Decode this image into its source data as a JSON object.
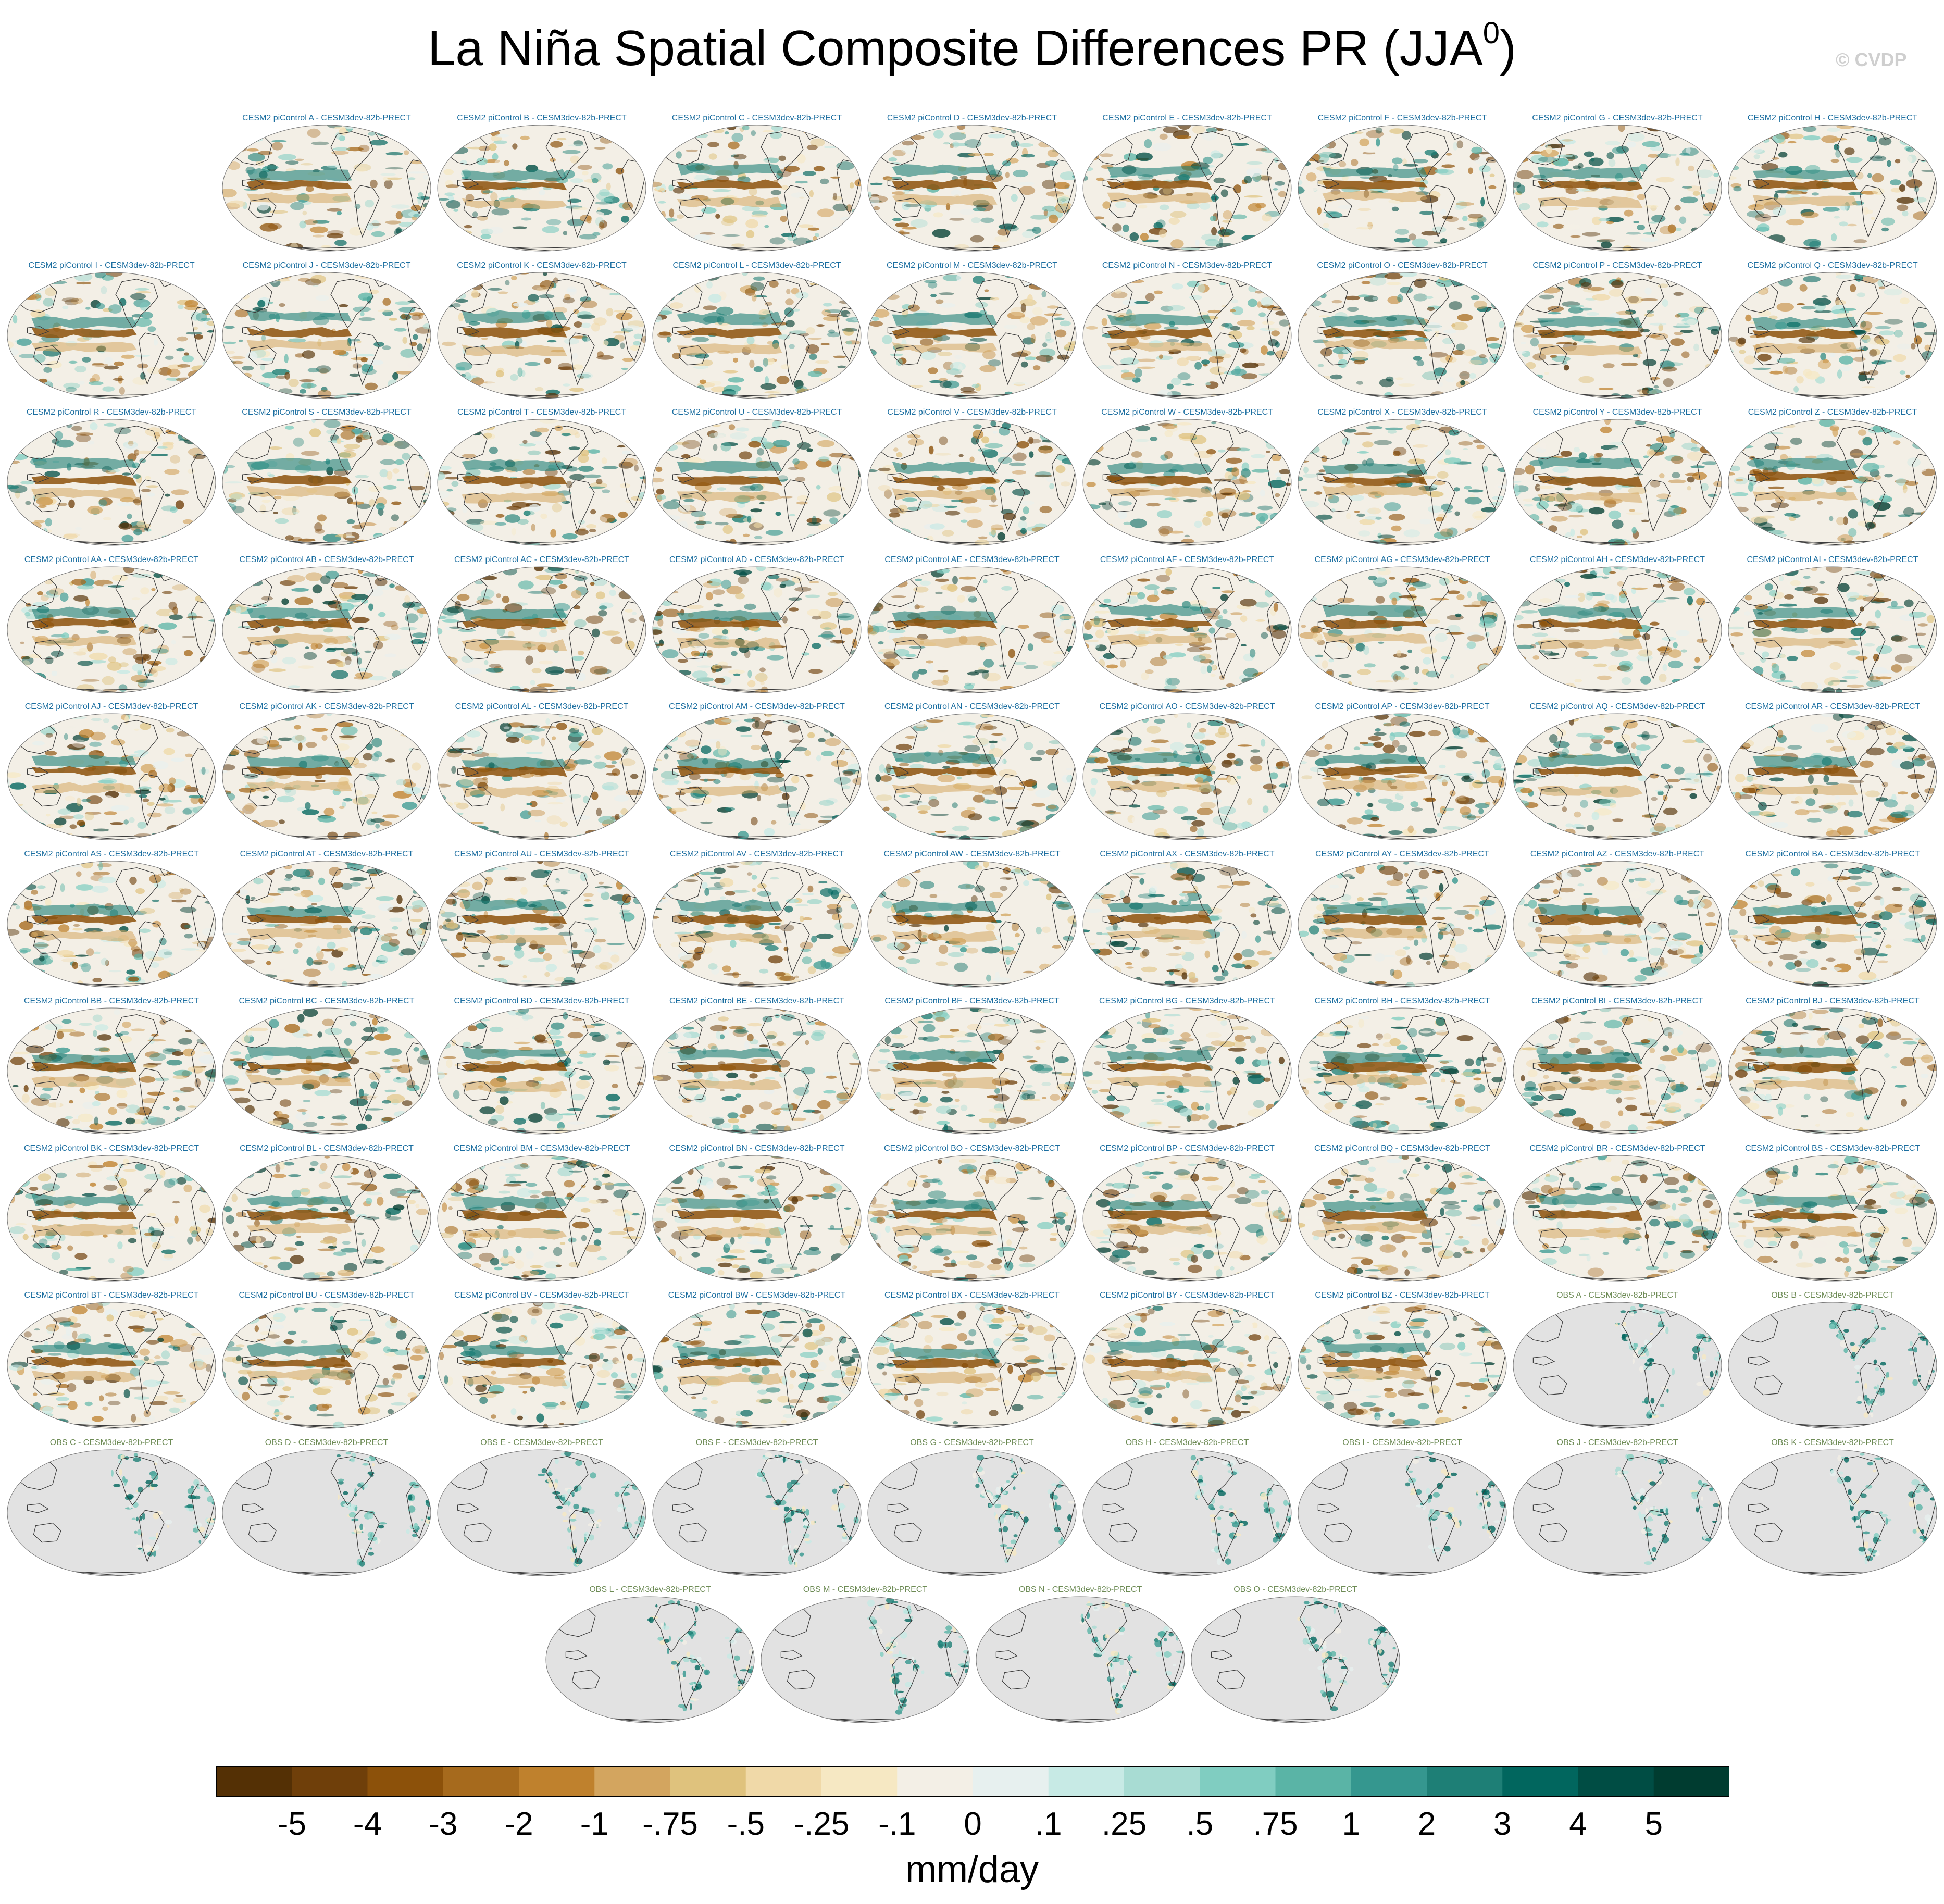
{
  "figure": {
    "title_main": "La Niña Spatial Composite Differences PR (JJA",
    "title_sup": "0",
    "title_close": ")",
    "copyright": "© CVDP",
    "units": "mm/day"
  },
  "panels": [
    {
      "title": "CESM2 piControl A - CESM3dev-82b-PRECT",
      "kind": "model"
    },
    {
      "title": "CESM2 piControl B - CESM3dev-82b-PRECT",
      "kind": "model"
    },
    {
      "title": "CESM2 piControl C - CESM3dev-82b-PRECT",
      "kind": "model"
    },
    {
      "title": "CESM2 piControl D - CESM3dev-82b-PRECT",
      "kind": "model"
    },
    {
      "title": "CESM2 piControl E - CESM3dev-82b-PRECT",
      "kind": "model"
    },
    {
      "title": "CESM2 piControl F - CESM3dev-82b-PRECT",
      "kind": "model"
    },
    {
      "title": "CESM2 piControl G - CESM3dev-82b-PRECT",
      "kind": "model"
    },
    {
      "title": "CESM2 piControl H - CESM3dev-82b-PRECT",
      "kind": "model"
    },
    {
      "title": "CESM2 piControl I - CESM3dev-82b-PRECT",
      "kind": "model"
    },
    {
      "title": "CESM2 piControl J - CESM3dev-82b-PRECT",
      "kind": "model"
    },
    {
      "title": "CESM2 piControl K - CESM3dev-82b-PRECT",
      "kind": "model"
    },
    {
      "title": "CESM2 piControl L - CESM3dev-82b-PRECT",
      "kind": "model"
    },
    {
      "title": "CESM2 piControl M - CESM3dev-82b-PRECT",
      "kind": "model"
    },
    {
      "title": "CESM2 piControl N - CESM3dev-82b-PRECT",
      "kind": "model"
    },
    {
      "title": "CESM2 piControl O - CESM3dev-82b-PRECT",
      "kind": "model"
    },
    {
      "title": "CESM2 piControl P - CESM3dev-82b-PRECT",
      "kind": "model"
    },
    {
      "title": "CESM2 piControl Q - CESM3dev-82b-PRECT",
      "kind": "model"
    },
    {
      "title": "CESM2 piControl R - CESM3dev-82b-PRECT",
      "kind": "model"
    },
    {
      "title": "CESM2 piControl S - CESM3dev-82b-PRECT",
      "kind": "model"
    },
    {
      "title": "CESM2 piControl T - CESM3dev-82b-PRECT",
      "kind": "model"
    },
    {
      "title": "CESM2 piControl U - CESM3dev-82b-PRECT",
      "kind": "model"
    },
    {
      "title": "CESM2 piControl V - CESM3dev-82b-PRECT",
      "kind": "model"
    },
    {
      "title": "CESM2 piControl W - CESM3dev-82b-PRECT",
      "kind": "model"
    },
    {
      "title": "CESM2 piControl X - CESM3dev-82b-PRECT",
      "kind": "model"
    },
    {
      "title": "CESM2 piControl Y - CESM3dev-82b-PRECT",
      "kind": "model"
    },
    {
      "title": "CESM2 piControl Z - CESM3dev-82b-PRECT",
      "kind": "model"
    },
    {
      "title": "CESM2 piControl AA - CESM3dev-82b-PRECT",
      "kind": "model"
    },
    {
      "title": "CESM2 piControl AB - CESM3dev-82b-PRECT",
      "kind": "model"
    },
    {
      "title": "CESM2 piControl AC - CESM3dev-82b-PRECT",
      "kind": "model"
    },
    {
      "title": "CESM2 piControl AD - CESM3dev-82b-PRECT",
      "kind": "model"
    },
    {
      "title": "CESM2 piControl AE - CESM3dev-82b-PRECT",
      "kind": "model"
    },
    {
      "title": "CESM2 piControl AF - CESM3dev-82b-PRECT",
      "kind": "model"
    },
    {
      "title": "CESM2 piControl AG - CESM3dev-82b-PRECT",
      "kind": "model"
    },
    {
      "title": "CESM2 piControl AH - CESM3dev-82b-PRECT",
      "kind": "model"
    },
    {
      "title": "CESM2 piControl AI - CESM3dev-82b-PRECT",
      "kind": "model"
    },
    {
      "title": "CESM2 piControl AJ - CESM3dev-82b-PRECT",
      "kind": "model"
    },
    {
      "title": "CESM2 piControl AK - CESM3dev-82b-PRECT",
      "kind": "model"
    },
    {
      "title": "CESM2 piControl AL - CESM3dev-82b-PRECT",
      "kind": "model"
    },
    {
      "title": "CESM2 piControl AM - CESM3dev-82b-PRECT",
      "kind": "model"
    },
    {
      "title": "CESM2 piControl AN - CESM3dev-82b-PRECT",
      "kind": "model"
    },
    {
      "title": "CESM2 piControl AO - CESM3dev-82b-PRECT",
      "kind": "model"
    },
    {
      "title": "CESM2 piControl AP - CESM3dev-82b-PRECT",
      "kind": "model"
    },
    {
      "title": "CESM2 piControl AQ - CESM3dev-82b-PRECT",
      "kind": "model"
    },
    {
      "title": "CESM2 piControl AR - CESM3dev-82b-PRECT",
      "kind": "model"
    },
    {
      "title": "CESM2 piControl AS - CESM3dev-82b-PRECT",
      "kind": "model"
    },
    {
      "title": "CESM2 piControl AT - CESM3dev-82b-PRECT",
      "kind": "model"
    },
    {
      "title": "CESM2 piControl AU - CESM3dev-82b-PRECT",
      "kind": "model"
    },
    {
      "title": "CESM2 piControl AV - CESM3dev-82b-PRECT",
      "kind": "model"
    },
    {
      "title": "CESM2 piControl AW - CESM3dev-82b-PRECT",
      "kind": "model"
    },
    {
      "title": "CESM2 piControl AX - CESM3dev-82b-PRECT",
      "kind": "model"
    },
    {
      "title": "CESM2 piControl AY - CESM3dev-82b-PRECT",
      "kind": "model"
    },
    {
      "title": "CESM2 piControl AZ - CESM3dev-82b-PRECT",
      "kind": "model"
    },
    {
      "title": "CESM2 piControl BA - CESM3dev-82b-PRECT",
      "kind": "model"
    },
    {
      "title": "CESM2 piControl BB - CESM3dev-82b-PRECT",
      "kind": "model"
    },
    {
      "title": "CESM2 piControl BC - CESM3dev-82b-PRECT",
      "kind": "model"
    },
    {
      "title": "CESM2 piControl BD - CESM3dev-82b-PRECT",
      "kind": "model"
    },
    {
      "title": "CESM2 piControl BE - CESM3dev-82b-PRECT",
      "kind": "model"
    },
    {
      "title": "CESM2 piControl BF - CESM3dev-82b-PRECT",
      "kind": "model"
    },
    {
      "title": "CESM2 piControl BG - CESM3dev-82b-PRECT",
      "kind": "model"
    },
    {
      "title": "CESM2 piControl BH - CESM3dev-82b-PRECT",
      "kind": "model"
    },
    {
      "title": "CESM2 piControl BI - CESM3dev-82b-PRECT",
      "kind": "model"
    },
    {
      "title": "CESM2 piControl BJ - CESM3dev-82b-PRECT",
      "kind": "model"
    },
    {
      "title": "CESM2 piControl BK - CESM3dev-82b-PRECT",
      "kind": "model"
    },
    {
      "title": "CESM2 piControl BL - CESM3dev-82b-PRECT",
      "kind": "model"
    },
    {
      "title": "CESM2 piControl BM - CESM3dev-82b-PRECT",
      "kind": "model"
    },
    {
      "title": "CESM2 piControl BN - CESM3dev-82b-PRECT",
      "kind": "model"
    },
    {
      "title": "CESM2 piControl BO - CESM3dev-82b-PRECT",
      "kind": "model"
    },
    {
      "title": "CESM2 piControl BP - CESM3dev-82b-PRECT",
      "kind": "model"
    },
    {
      "title": "CESM2 piControl BQ - CESM3dev-82b-PRECT",
      "kind": "model"
    },
    {
      "title": "CESM2 piControl BR - CESM3dev-82b-PRECT",
      "kind": "model"
    },
    {
      "title": "CESM2 piControl BS - CESM3dev-82b-PRECT",
      "kind": "model"
    },
    {
      "title": "CESM2 piControl BT - CESM3dev-82b-PRECT",
      "kind": "model"
    },
    {
      "title": "CESM2 piControl BU - CESM3dev-82b-PRECT",
      "kind": "model"
    },
    {
      "title": "CESM2 piControl BV - CESM3dev-82b-PRECT",
      "kind": "model"
    },
    {
      "title": "CESM2 piControl BW - CESM3dev-82b-PRECT",
      "kind": "model"
    },
    {
      "title": "CESM2 piControl BX - CESM3dev-82b-PRECT",
      "kind": "model"
    },
    {
      "title": "CESM2 piControl BY - CESM3dev-82b-PRECT",
      "kind": "model"
    },
    {
      "title": "CESM2 piControl BZ - CESM3dev-82b-PRECT",
      "kind": "model"
    },
    {
      "title": "OBS A - CESM3dev-82b-PRECT",
      "kind": "obs"
    },
    {
      "title": "OBS B - CESM3dev-82b-PRECT",
      "kind": "obs"
    },
    {
      "title": "OBS C - CESM3dev-82b-PRECT",
      "kind": "obs"
    },
    {
      "title": "OBS D - CESM3dev-82b-PRECT",
      "kind": "obs"
    },
    {
      "title": "OBS E - CESM3dev-82b-PRECT",
      "kind": "obs"
    },
    {
      "title": "OBS F - CESM3dev-82b-PRECT",
      "kind": "obs"
    },
    {
      "title": "OBS G - CESM3dev-82b-PRECT",
      "kind": "obs"
    },
    {
      "title": "OBS H - CESM3dev-82b-PRECT",
      "kind": "obs"
    },
    {
      "title": "OBS I - CESM3dev-82b-PRECT",
      "kind": "obs"
    },
    {
      "title": "OBS J - CESM3dev-82b-PRECT",
      "kind": "obs"
    },
    {
      "title": "OBS K - CESM3dev-82b-PRECT",
      "kind": "obs"
    },
    {
      "title": "OBS L - CESM3dev-82b-PRECT",
      "kind": "obs"
    },
    {
      "title": "OBS M - CESM3dev-82b-PRECT",
      "kind": "obs"
    },
    {
      "title": "OBS N - CESM3dev-82b-PRECT",
      "kind": "obs"
    },
    {
      "title": "OBS O - CESM3dev-82b-PRECT",
      "kind": "obs"
    }
  ],
  "colorbar": {
    "labels": [
      "-5",
      "-4",
      "-3",
      "-2",
      "-1",
      "-.75",
      "-.5",
      "-.25",
      "-.1",
      "0",
      ".1",
      ".25",
      ".5",
      ".75",
      "1",
      "2",
      "3",
      "4",
      "5"
    ],
    "colors": [
      "#543005",
      "#6f3f0a",
      "#8c510a",
      "#a66a1d",
      "#bf812d",
      "#d3a55f",
      "#dfc27d",
      "#f0d9a8",
      "#f6e8c3",
      "#f3efe6",
      "#e7f0ef",
      "#c7eae5",
      "#a8dcd3",
      "#80cdc1",
      "#5ab4a6",
      "#35978f",
      "#1e7f76",
      "#01665e",
      "#004d44",
      "#003c30"
    ]
  },
  "style": {
    "model_title_color": "#1b6ea0",
    "obs_title_color": "#6d8b55",
    "obs_map_fill": "#e2e2e2",
    "coast_color": "#3c3c3c"
  }
}
